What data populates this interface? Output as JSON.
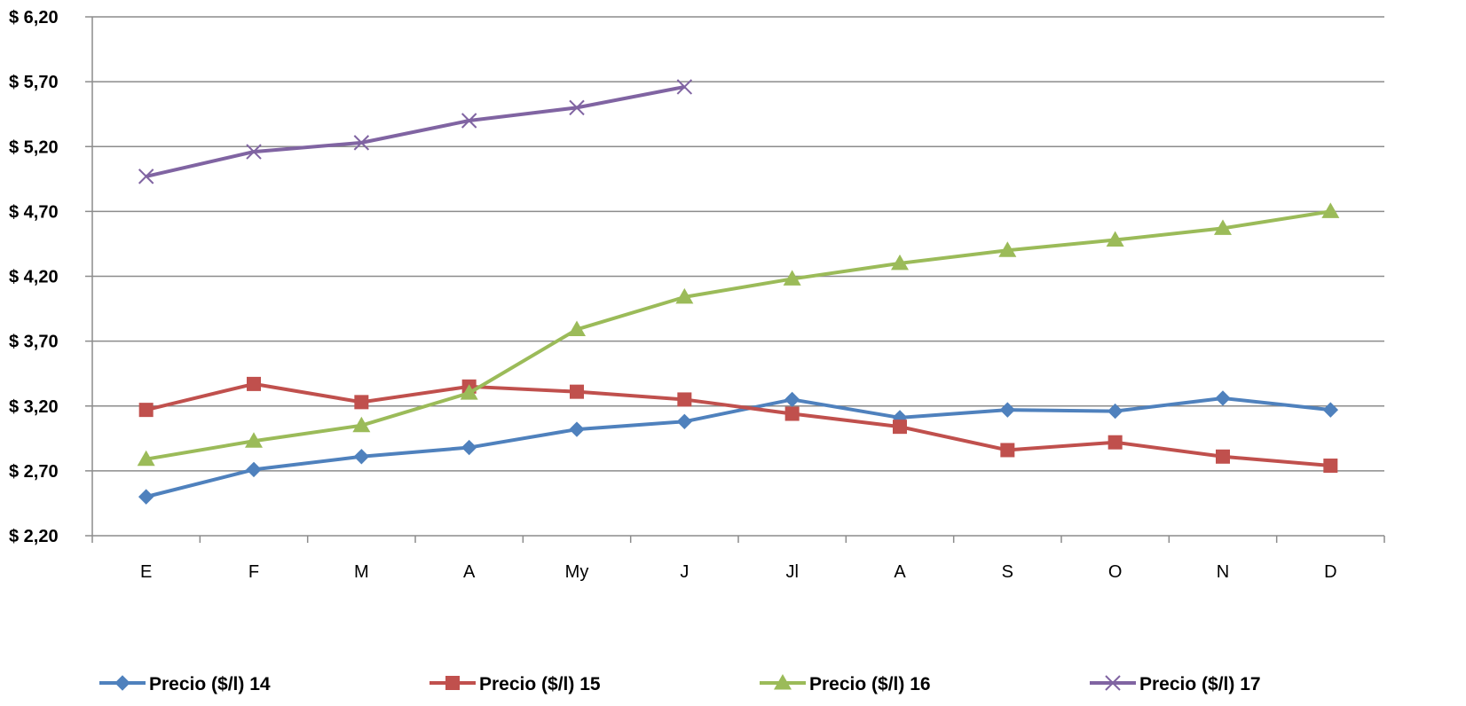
{
  "chart_data": {
    "type": "line",
    "title": "",
    "xlabel": "",
    "ylabel": "",
    "categories": [
      "E",
      "F",
      "M",
      "A",
      "My",
      "J",
      "Jl",
      "A",
      "S",
      "O",
      "N",
      "D"
    ],
    "ylim": [
      2.2,
      6.2
    ],
    "yticks": [
      2.2,
      2.7,
      3.2,
      3.7,
      4.2,
      4.7,
      5.2,
      5.7,
      6.2
    ],
    "ytick_labels": [
      "$ 2,20",
      "$ 2,70",
      "$ 3,20",
      "$ 3,70",
      "$ 4,20",
      "$ 4,70",
      "$ 5,20",
      "$ 5,70",
      "$ 6,20"
    ],
    "grid": true,
    "legend_position": "bottom",
    "series": [
      {
        "name": "Precio ($/l) 14",
        "color": "#4F81BD",
        "marker": "diamond",
        "values": [
          2.5,
          2.71,
          2.81,
          2.88,
          3.02,
          3.08,
          3.25,
          3.11,
          3.17,
          3.16,
          3.26,
          3.17
        ]
      },
      {
        "name": "Precio ($/l) 15",
        "color": "#C0504D",
        "marker": "square",
        "values": [
          3.17,
          3.37,
          3.23,
          3.35,
          3.31,
          3.25,
          3.14,
          3.04,
          2.86,
          2.92,
          2.81,
          2.74
        ]
      },
      {
        "name": "Precio ($/l) 16",
        "color": "#9BBB59",
        "marker": "triangle",
        "values": [
          2.79,
          2.93,
          3.05,
          3.3,
          3.79,
          4.04,
          4.18,
          4.3,
          4.4,
          4.48,
          4.57,
          4.7
        ]
      },
      {
        "name": "Precio ($/l) 17",
        "color": "#8064A2",
        "marker": "x",
        "values": [
          4.97,
          5.16,
          5.23,
          5.4,
          5.5,
          5.66,
          null,
          null,
          null,
          null,
          null,
          null
        ]
      }
    ]
  }
}
